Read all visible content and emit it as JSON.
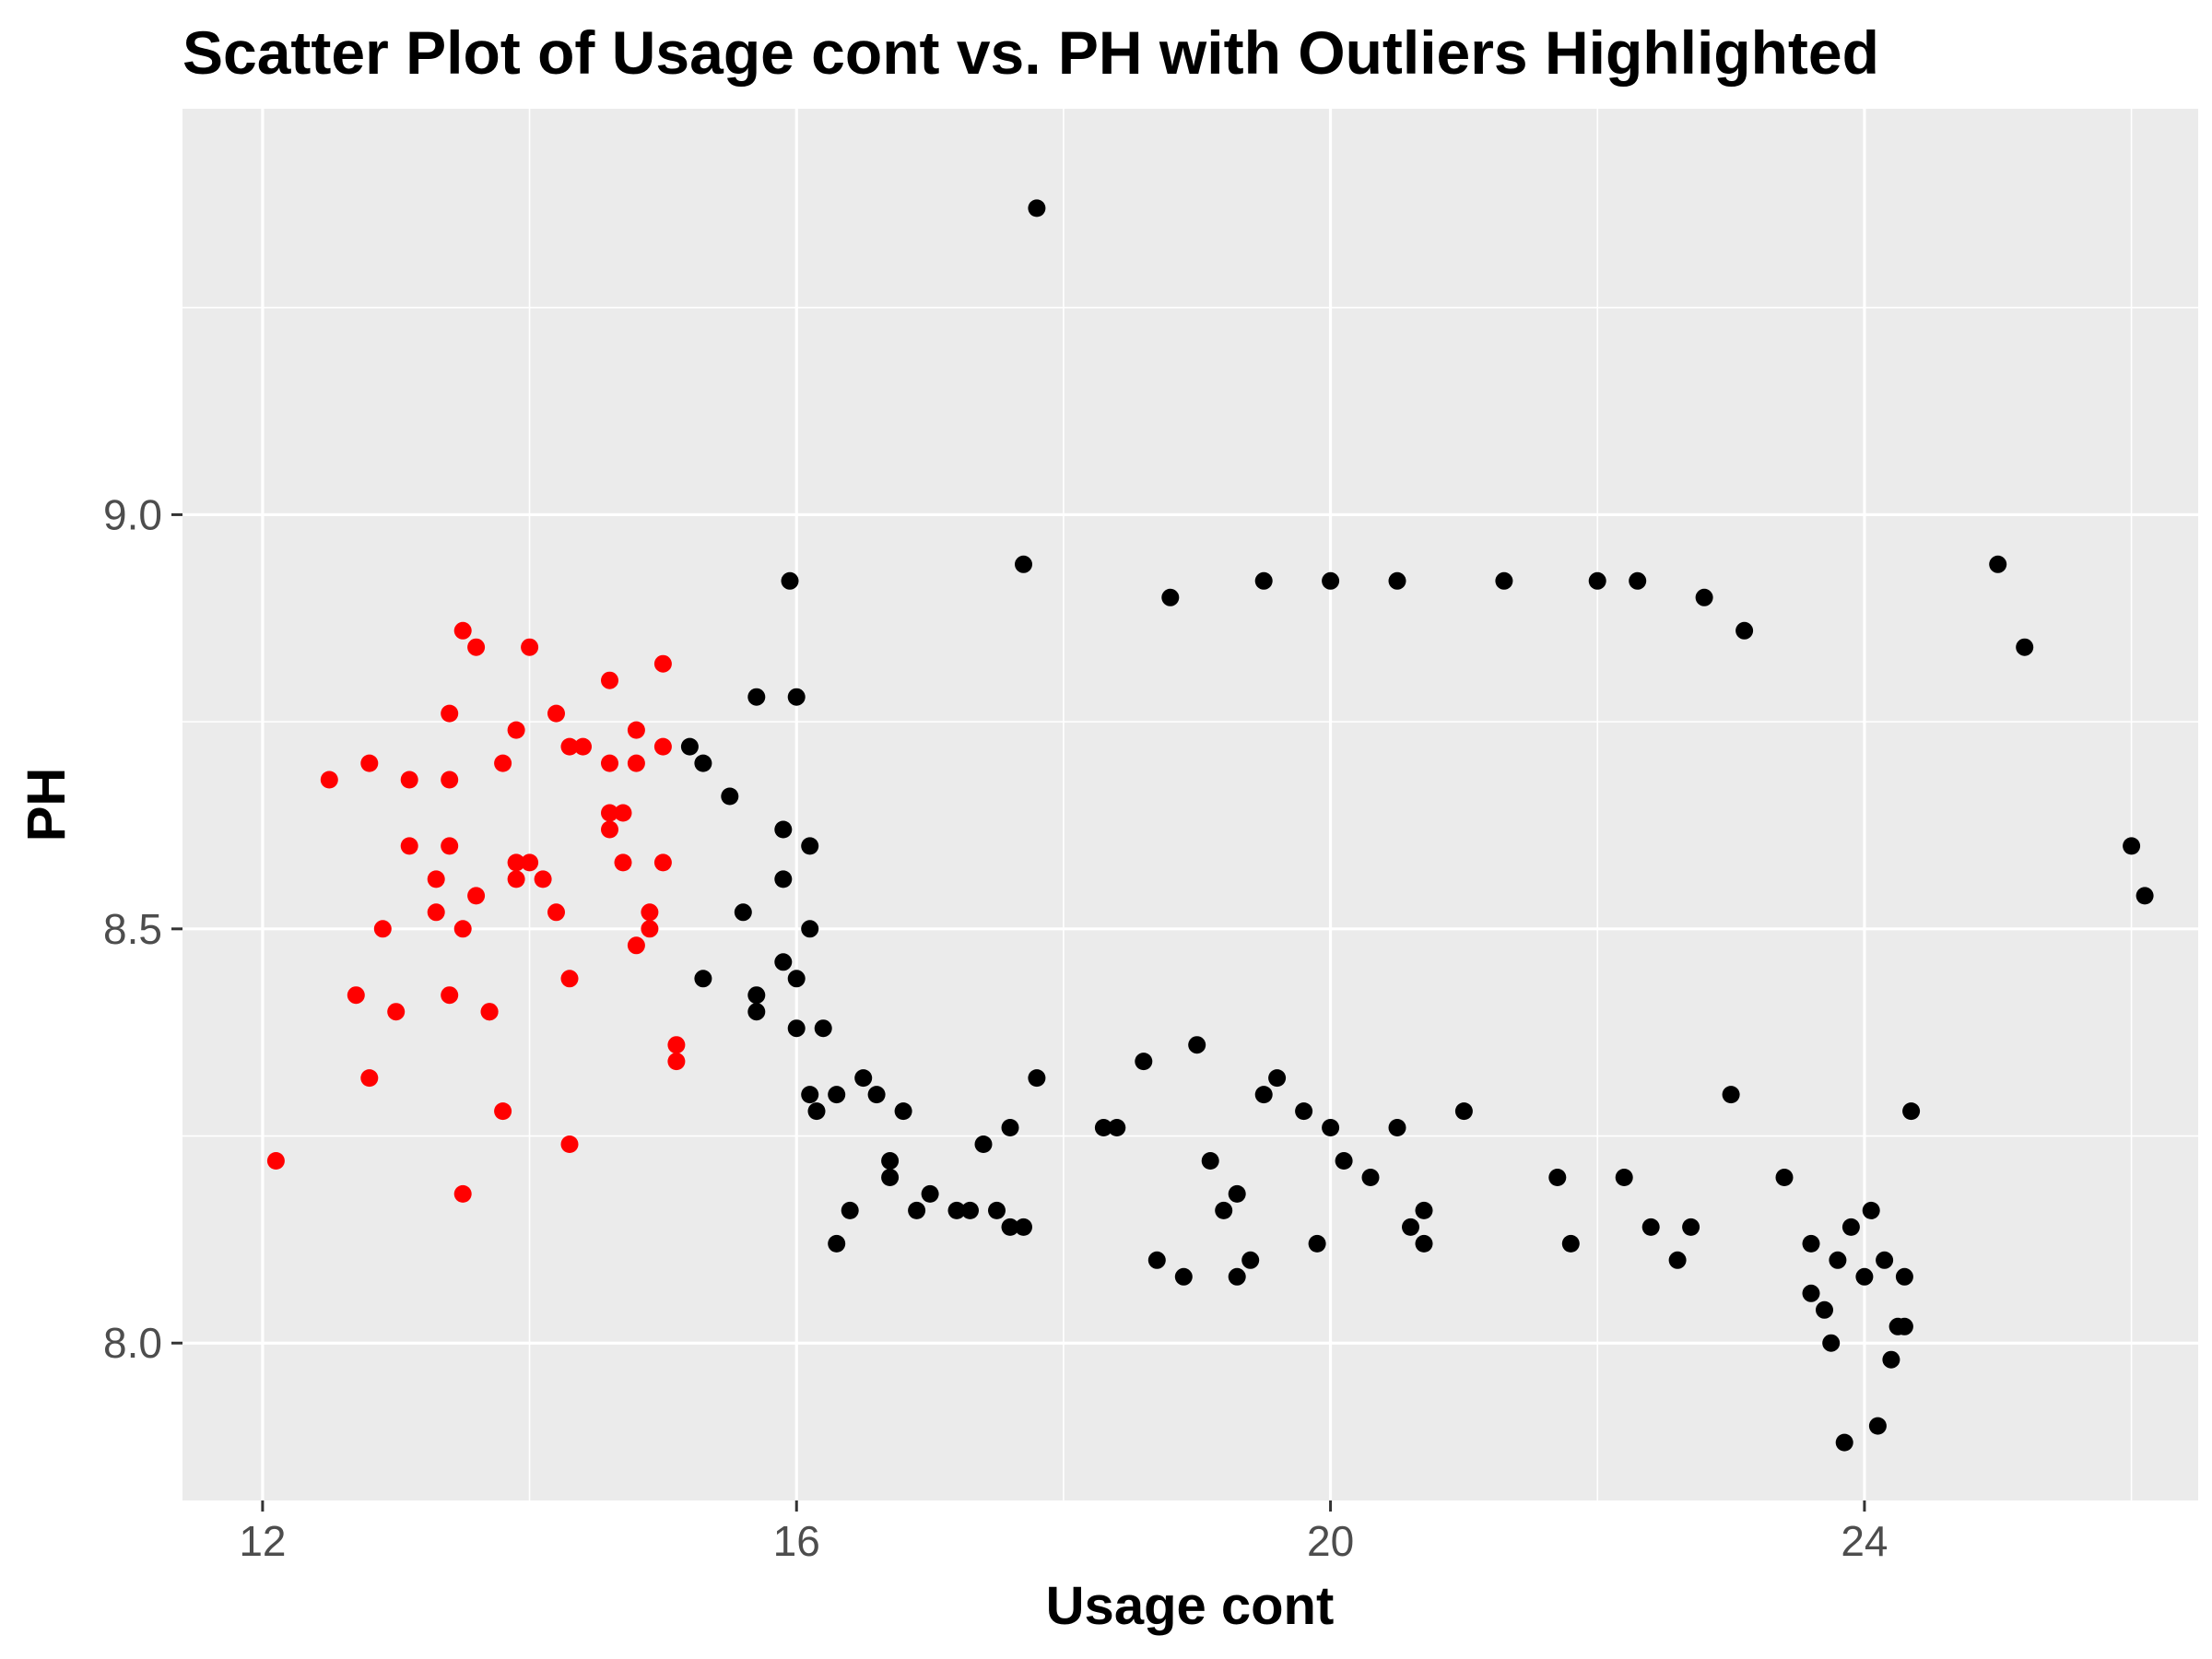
{
  "chart_data": {
    "type": "scatter",
    "title": "Scatter Plot of Usage cont vs. PH with Outliers Highlighted",
    "xlabel": "Usage cont",
    "ylabel": "PH",
    "xlim": [
      11.4,
      26.5
    ],
    "ylim": [
      7.81,
      9.49
    ],
    "x_ticks": [
      12,
      16,
      20,
      24
    ],
    "x_tick_labels": [
      "12",
      "16",
      "20",
      "24"
    ],
    "y_ticks": [
      8.0,
      8.5,
      9.0
    ],
    "y_tick_labels": [
      "8.0",
      "8.5",
      "9.0"
    ],
    "grid": true,
    "legend": "none",
    "colors": {
      "panel": "#ebebeb",
      "grid": "#ffffff",
      "normal": "#000000",
      "outlier": "#ff0000",
      "tick": "#333333"
    },
    "series": [
      {
        "points": [
          [
            12.1,
            8.22
          ],
          [
            12.5,
            8.68
          ],
          [
            12.7,
            8.42
          ],
          [
            12.8,
            8.7
          ],
          [
            12.8,
            8.32
          ],
          [
            12.9,
            8.5
          ],
          [
            13.0,
            8.4
          ],
          [
            13.1,
            8.68
          ],
          [
            13.1,
            8.6
          ],
          [
            13.3,
            8.56
          ],
          [
            13.3,
            8.52
          ],
          [
            13.4,
            8.76
          ],
          [
            13.4,
            8.68
          ],
          [
            13.4,
            8.42
          ],
          [
            13.4,
            8.6
          ],
          [
            13.5,
            8.86
          ],
          [
            13.5,
            8.5
          ],
          [
            13.5,
            8.18
          ],
          [
            13.6,
            8.84
          ],
          [
            13.6,
            8.54
          ],
          [
            13.7,
            8.4
          ],
          [
            13.7,
            8.4
          ],
          [
            13.8,
            8.7
          ],
          [
            13.8,
            8.28
          ],
          [
            13.9,
            8.74
          ],
          [
            13.9,
            8.58
          ],
          [
            13.9,
            8.56
          ],
          [
            14.0,
            8.84
          ],
          [
            14.0,
            8.58
          ],
          [
            14.1,
            8.56
          ],
          [
            14.2,
            8.52
          ],
          [
            14.2,
            8.76
          ],
          [
            14.3,
            8.72
          ],
          [
            14.3,
            8.44
          ],
          [
            14.3,
            8.24
          ],
          [
            14.4,
            8.72
          ],
          [
            14.6,
            8.8
          ],
          [
            14.6,
            8.7
          ],
          [
            14.6,
            8.62
          ],
          [
            14.6,
            8.64
          ],
          [
            14.7,
            8.58
          ],
          [
            14.7,
            8.64
          ],
          [
            14.8,
            8.74
          ],
          [
            14.8,
            8.7
          ],
          [
            14.8,
            8.48
          ],
          [
            14.9,
            8.5
          ],
          [
            14.9,
            8.52
          ],
          [
            15.0,
            8.82
          ],
          [
            15.0,
            8.72
          ],
          [
            15.0,
            8.58
          ],
          [
            15.1,
            8.36
          ],
          [
            15.1,
            8.34
          ]
        ]
      },
      {
        "points": [
          [
            15.2,
            8.72
          ],
          [
            15.3,
            8.7
          ],
          [
            15.3,
            8.44
          ],
          [
            15.5,
            8.66
          ],
          [
            15.6,
            8.52
          ],
          [
            15.7,
            8.78
          ],
          [
            15.7,
            8.4
          ],
          [
            15.7,
            8.42
          ],
          [
            15.9,
            8.56
          ],
          [
            15.9,
            8.46
          ],
          [
            15.9,
            8.62
          ],
          [
            15.95,
            8.92
          ],
          [
            16.0,
            8.44
          ],
          [
            16.0,
            8.38
          ],
          [
            16.0,
            8.78
          ],
          [
            16.1,
            8.6
          ],
          [
            16.1,
            8.5
          ],
          [
            16.1,
            8.3
          ],
          [
            16.15,
            8.28
          ],
          [
            16.2,
            8.38
          ],
          [
            16.3,
            8.12
          ],
          [
            16.3,
            8.3
          ],
          [
            16.4,
            8.16
          ],
          [
            16.5,
            8.32
          ],
          [
            16.6,
            8.3
          ],
          [
            16.7,
            8.22
          ],
          [
            16.7,
            8.2
          ],
          [
            16.8,
            8.28
          ],
          [
            16.9,
            8.16
          ],
          [
            17.0,
            8.18
          ],
          [
            17.2,
            8.16
          ],
          [
            17.3,
            8.16
          ],
          [
            17.4,
            8.24
          ],
          [
            17.5,
            8.16
          ],
          [
            17.6,
            8.14
          ],
          [
            17.7,
            8.14
          ],
          [
            17.6,
            8.26
          ],
          [
            17.7,
            8.94
          ],
          [
            17.8,
            8.32
          ],
          [
            17.8,
            9.37
          ],
          [
            18.3,
            8.26
          ],
          [
            18.4,
            8.26
          ],
          [
            18.6,
            8.34
          ],
          [
            18.7,
            8.1
          ],
          [
            18.8,
            8.9
          ],
          [
            18.9,
            8.08
          ],
          [
            19.0,
            8.36
          ],
          [
            19.1,
            8.22
          ],
          [
            19.2,
            8.16
          ],
          [
            19.3,
            8.08
          ],
          [
            19.3,
            8.18
          ],
          [
            19.4,
            8.1
          ],
          [
            19.5,
            8.3
          ],
          [
            19.6,
            8.32
          ],
          [
            19.5,
            8.92
          ],
          [
            19.8,
            8.28
          ],
          [
            19.9,
            8.12
          ],
          [
            20.0,
            8.92
          ],
          [
            20.0,
            8.26
          ],
          [
            20.1,
            8.22
          ],
          [
            20.3,
            8.2
          ],
          [
            20.5,
            8.92
          ],
          [
            20.5,
            8.26
          ],
          [
            20.6,
            8.14
          ],
          [
            20.7,
            8.12
          ],
          [
            20.7,
            8.16
          ],
          [
            21.0,
            8.28
          ],
          [
            21.3,
            8.92
          ],
          [
            21.7,
            8.2
          ],
          [
            21.8,
            8.12
          ],
          [
            22.0,
            8.92
          ],
          [
            22.2,
            8.2
          ],
          [
            22.3,
            8.92
          ],
          [
            22.4,
            8.14
          ],
          [
            22.6,
            8.1
          ],
          [
            22.7,
            8.14
          ],
          [
            22.8,
            8.9
          ],
          [
            23.0,
            8.3
          ],
          [
            23.1,
            8.86
          ],
          [
            23.4,
            8.2
          ],
          [
            23.6,
            8.12
          ],
          [
            23.6,
            8.06
          ],
          [
            23.7,
            8.04
          ],
          [
            23.75,
            8.0
          ],
          [
            23.8,
            8.1
          ],
          [
            23.85,
            7.88
          ],
          [
            23.9,
            8.14
          ],
          [
            24.0,
            8.08
          ],
          [
            24.05,
            8.16
          ],
          [
            24.1,
            7.9
          ],
          [
            24.15,
            8.1
          ],
          [
            24.2,
            7.98
          ],
          [
            24.25,
            8.02
          ],
          [
            24.3,
            8.08
          ],
          [
            24.3,
            8.02
          ],
          [
            24.35,
            8.28
          ],
          [
            25.0,
            8.94
          ],
          [
            25.2,
            8.84
          ],
          [
            26.0,
            8.6
          ],
          [
            26.1,
            8.54
          ]
        ]
      }
    ]
  }
}
